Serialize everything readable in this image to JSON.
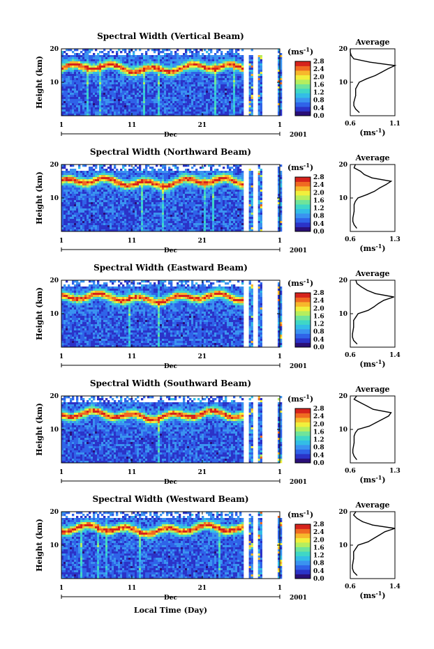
{
  "figure": {
    "xlabel": "Local Time (Day)",
    "month_label": "Dec",
    "year_label": "2001",
    "ylabel": "Height (km)",
    "x_ticks": [
      "1",
      "11",
      "21",
      "1"
    ],
    "y_ticks": [
      "20",
      "10"
    ],
    "avg_title": "Average",
    "avg_xlabel_base": "(ms",
    "avg_xlabel_sup": "-1",
    "avg_xlabel_end": ")",
    "cbar_unit_base": "(ms",
    "cbar_unit_sup": "-1",
    "cbar_unit_end": ")",
    "cbar_ticks": [
      "0.0",
      "0.4",
      "0.8",
      "1.2",
      "1.6",
      "2.0",
      "2.4",
      "2.8"
    ],
    "colormap": [
      "#2a0f78",
      "#2b33c8",
      "#2f63e8",
      "#3a93f0",
      "#33bde6",
      "#3fd7c6",
      "#6fe49a",
      "#b5ee5e",
      "#f1ef3c",
      "#f7b72c",
      "#f06a22",
      "#d6231c"
    ],
    "background": "#ffffff"
  },
  "chart_data": [
    {
      "type": "heatmap",
      "title": "Spectral Width (Vertical Beam)",
      "colorbar": {
        "min": 0.0,
        "max": 2.8,
        "unit": "ms-1"
      },
      "x": {
        "start": "Dec 1",
        "end": "Jan 1",
        "year": "2001",
        "ticks": [
          "1",
          "11",
          "21",
          "1"
        ]
      },
      "y": {
        "range": [
          0,
          20
        ],
        "ticks": [
          10,
          20
        ],
        "label": "Height (km)"
      },
      "data_coverage_days": [
        [
          1,
          26.8
        ],
        [
          27.6,
          28.0
        ],
        [
          28.9,
          29.2
        ],
        [
          31.7,
          32.0
        ]
      ],
      "peak_layer_km": 14.5,
      "average_profile": {
        "x_ticks": [
          "0.6",
          "1.1"
        ],
        "xlim": [
          0.6,
          1.1
        ],
        "height_km": [
          1,
          2,
          3,
          4,
          5,
          6,
          7,
          8,
          9,
          10,
          11,
          12,
          13,
          14,
          15,
          16,
          17,
          18,
          19,
          20
        ],
        "width_ms": [
          0.7,
          0.66,
          0.64,
          0.64,
          0.65,
          0.66,
          0.66,
          0.66,
          0.68,
          0.7,
          0.78,
          0.88,
          0.95,
          1.02,
          1.1,
          0.82,
          0.64,
          0.61,
          0.6,
          0.6
        ]
      }
    },
    {
      "type": "heatmap",
      "title": "Spectral Width (Northward Beam)",
      "colorbar": {
        "min": 0.0,
        "max": 2.8,
        "unit": "ms-1"
      },
      "x": {
        "start": "Dec 1",
        "end": "Jan 1",
        "year": "2001",
        "ticks": [
          "1",
          "11",
          "21",
          "1"
        ]
      },
      "y": {
        "range": [
          0,
          20
        ],
        "ticks": [
          10,
          20
        ],
        "label": "Height (km)"
      },
      "data_coverage_days": [
        [
          1,
          26.8
        ],
        [
          27.6,
          28.0
        ],
        [
          28.9,
          29.2
        ],
        [
          31.7,
          32.0
        ]
      ],
      "peak_layer_km": 15.0,
      "average_profile": {
        "x_ticks": [
          "0.6",
          "1.3"
        ],
        "xlim": [
          0.6,
          1.3
        ],
        "height_km": [
          1,
          2,
          3,
          4,
          5,
          6,
          7,
          8,
          9,
          10,
          11,
          12,
          13,
          14,
          15,
          16,
          17,
          18,
          19,
          20
        ],
        "width_ms": [
          0.7,
          0.66,
          0.64,
          0.64,
          0.65,
          0.66,
          0.66,
          0.66,
          0.68,
          0.72,
          0.86,
          0.98,
          1.06,
          1.16,
          1.24,
          0.94,
          0.82,
          0.76,
          0.66,
          0.68
        ]
      }
    },
    {
      "type": "heatmap",
      "title": "Spectral Width (Eastward Beam)",
      "colorbar": {
        "min": 0.0,
        "max": 2.8,
        "unit": "ms-1"
      },
      "x": {
        "start": "Dec 1",
        "end": "Jan 1",
        "year": "2001",
        "ticks": [
          "1",
          "11",
          "21",
          "1"
        ]
      },
      "y": {
        "range": [
          0,
          20
        ],
        "ticks": [
          10,
          20
        ],
        "label": "Height (km)"
      },
      "data_coverage_days": [
        [
          1,
          26.8
        ],
        [
          27.6,
          28.0
        ],
        [
          28.9,
          29.2
        ],
        [
          31.7,
          32.0
        ]
      ],
      "peak_layer_km": 15.0,
      "average_profile": {
        "x_ticks": [
          "0.6",
          "1.4"
        ],
        "xlim": [
          0.6,
          1.4
        ],
        "height_km": [
          1,
          2,
          3,
          4,
          5,
          6,
          7,
          8,
          9,
          10,
          11,
          12,
          13,
          14,
          15,
          16,
          17,
          18,
          19,
          20
        ],
        "width_ms": [
          0.72,
          0.66,
          0.64,
          0.64,
          0.65,
          0.66,
          0.66,
          0.66,
          0.7,
          0.74,
          0.92,
          1.02,
          1.1,
          1.2,
          1.38,
          1.05,
          0.9,
          0.8,
          0.72,
          0.7
        ]
      }
    },
    {
      "type": "heatmap",
      "title": "Spectral Width (Southward Beam)",
      "colorbar": {
        "min": 0.0,
        "max": 2.8,
        "unit": "ms-1"
      },
      "x": {
        "start": "Dec 1",
        "end": "Jan 1",
        "year": "2001",
        "ticks": [
          "1",
          "11",
          "21",
          "1"
        ]
      },
      "y": {
        "range": [
          0,
          20
        ],
        "ticks": [
          10,
          20
        ],
        "label": "Height (km)"
      },
      "data_coverage_days": [
        [
          1,
          26.8
        ],
        [
          27.6,
          28.0
        ],
        [
          28.9,
          29.2
        ],
        [
          31.7,
          32.0
        ]
      ],
      "peak_layer_km": 14.5,
      "average_profile": {
        "x_ticks": [
          "0.6",
          "1.3"
        ],
        "xlim": [
          0.6,
          1.3
        ],
        "height_km": [
          1,
          2,
          3,
          4,
          5,
          6,
          7,
          8,
          9,
          10,
          11,
          12,
          13,
          14,
          15,
          16,
          17,
          18,
          19,
          20
        ],
        "width_ms": [
          0.7,
          0.66,
          0.64,
          0.64,
          0.65,
          0.66,
          0.66,
          0.66,
          0.68,
          0.72,
          0.9,
          1.0,
          1.1,
          1.2,
          1.24,
          0.96,
          0.86,
          0.76,
          0.66,
          0.7
        ]
      }
    },
    {
      "type": "heatmap",
      "title": "Spectral Width (Westward Beam)",
      "colorbar": {
        "min": 0.0,
        "max": 2.8,
        "unit": "ms-1"
      },
      "x": {
        "start": "Dec 1",
        "end": "Jan 1",
        "year": "2001",
        "ticks": [
          "1",
          "11",
          "21",
          "1"
        ]
      },
      "y": {
        "range": [
          0,
          20
        ],
        "ticks": [
          10,
          20
        ],
        "label": "Height (km)"
      },
      "data_coverage_days": [
        [
          1,
          26.8
        ],
        [
          27.6,
          28.0
        ],
        [
          28.9,
          29.2
        ],
        [
          31.7,
          32.0
        ]
      ],
      "peak_layer_km": 15.0,
      "average_profile": {
        "x_ticks": [
          "0.6",
          "1.4"
        ],
        "xlim": [
          0.6,
          1.4
        ],
        "height_km": [
          1,
          2,
          3,
          4,
          5,
          6,
          7,
          8,
          9,
          10,
          11,
          12,
          13,
          14,
          15,
          16,
          17,
          18,
          19,
          20
        ],
        "width_ms": [
          0.72,
          0.66,
          0.64,
          0.64,
          0.65,
          0.66,
          0.66,
          0.66,
          0.7,
          0.74,
          0.92,
          1.02,
          1.12,
          1.22,
          1.4,
          1.0,
          0.82,
          0.72,
          0.66,
          0.7
        ]
      }
    }
  ]
}
